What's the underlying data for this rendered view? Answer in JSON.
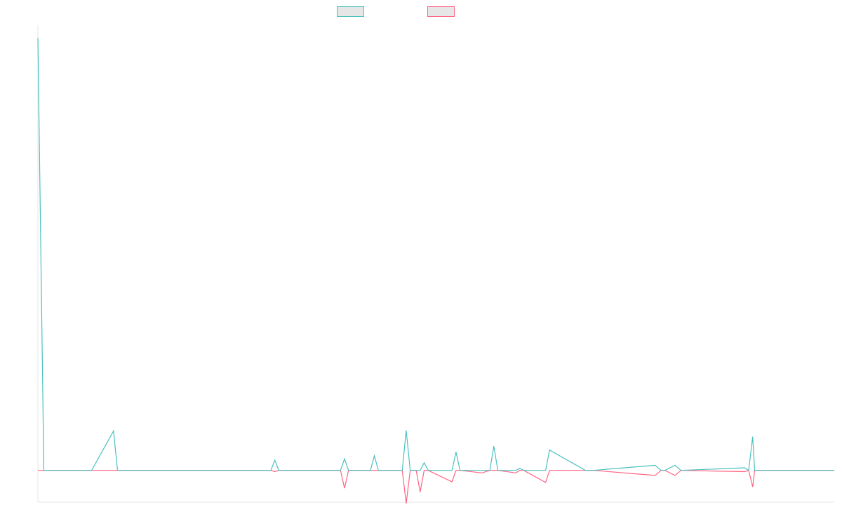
{
  "chart_data": {
    "type": "line",
    "title": "",
    "xlabel": "",
    "ylabel": "",
    "grid": false,
    "legend_position": "top-center",
    "ylim": [
      -5,
      70
    ],
    "x": [
      0,
      0.6,
      5.4,
      7.6,
      8.0,
      8.4,
      16.0,
      23.4,
      23.8,
      24.2,
      30.0,
      30.4,
      30.8,
      31.2,
      33.4,
      33.8,
      34.2,
      36.6,
      37.0,
      37.4,
      38.0,
      38.4,
      38.8,
      39.2,
      41.6,
      42.0,
      42.4,
      44.6,
      45.4,
      45.8,
      46.2,
      48.0,
      48.4,
      48.8,
      51.0,
      51.4,
      55.0,
      55.4,
      55.8,
      62.0,
      62.6,
      63.0,
      64.0,
      64.6,
      71.0,
      71.4,
      71.8,
      72.0,
      80.0
    ],
    "series": [
      {
        "color": "#4bc0c0",
        "values": [
          68,
          0,
          0,
          6.2,
          0,
          0,
          0,
          0,
          1.6,
          0,
          0,
          0,
          1.8,
          0,
          0,
          2.3,
          0,
          0,
          6.3,
          0,
          0,
          0,
          1.2,
          0,
          0,
          2.9,
          0,
          0,
          0,
          3.8,
          0,
          0,
          0.3,
          0,
          0,
          3.2,
          0,
          0,
          0,
          0.8,
          0,
          0,
          0.8,
          0,
          0.4,
          0,
          5.3,
          0,
          0
        ]
      },
      {
        "color": "#ff6384",
        "values": [
          0,
          0,
          0,
          0,
          0,
          0,
          0,
          0,
          -0.2,
          0,
          0,
          0,
          -2.8,
          0,
          0,
          0,
          0,
          0,
          -5.2,
          0,
          0,
          -3.4,
          0,
          0,
          -1.8,
          0,
          0,
          -0.4,
          0,
          0,
          0,
          -0.4,
          0,
          0,
          -1.9,
          0,
          0,
          0,
          0,
          -0.8,
          0,
          0,
          -0.8,
          0,
          -0.2,
          0,
          -2.6,
          0,
          0
        ]
      }
    ]
  }
}
